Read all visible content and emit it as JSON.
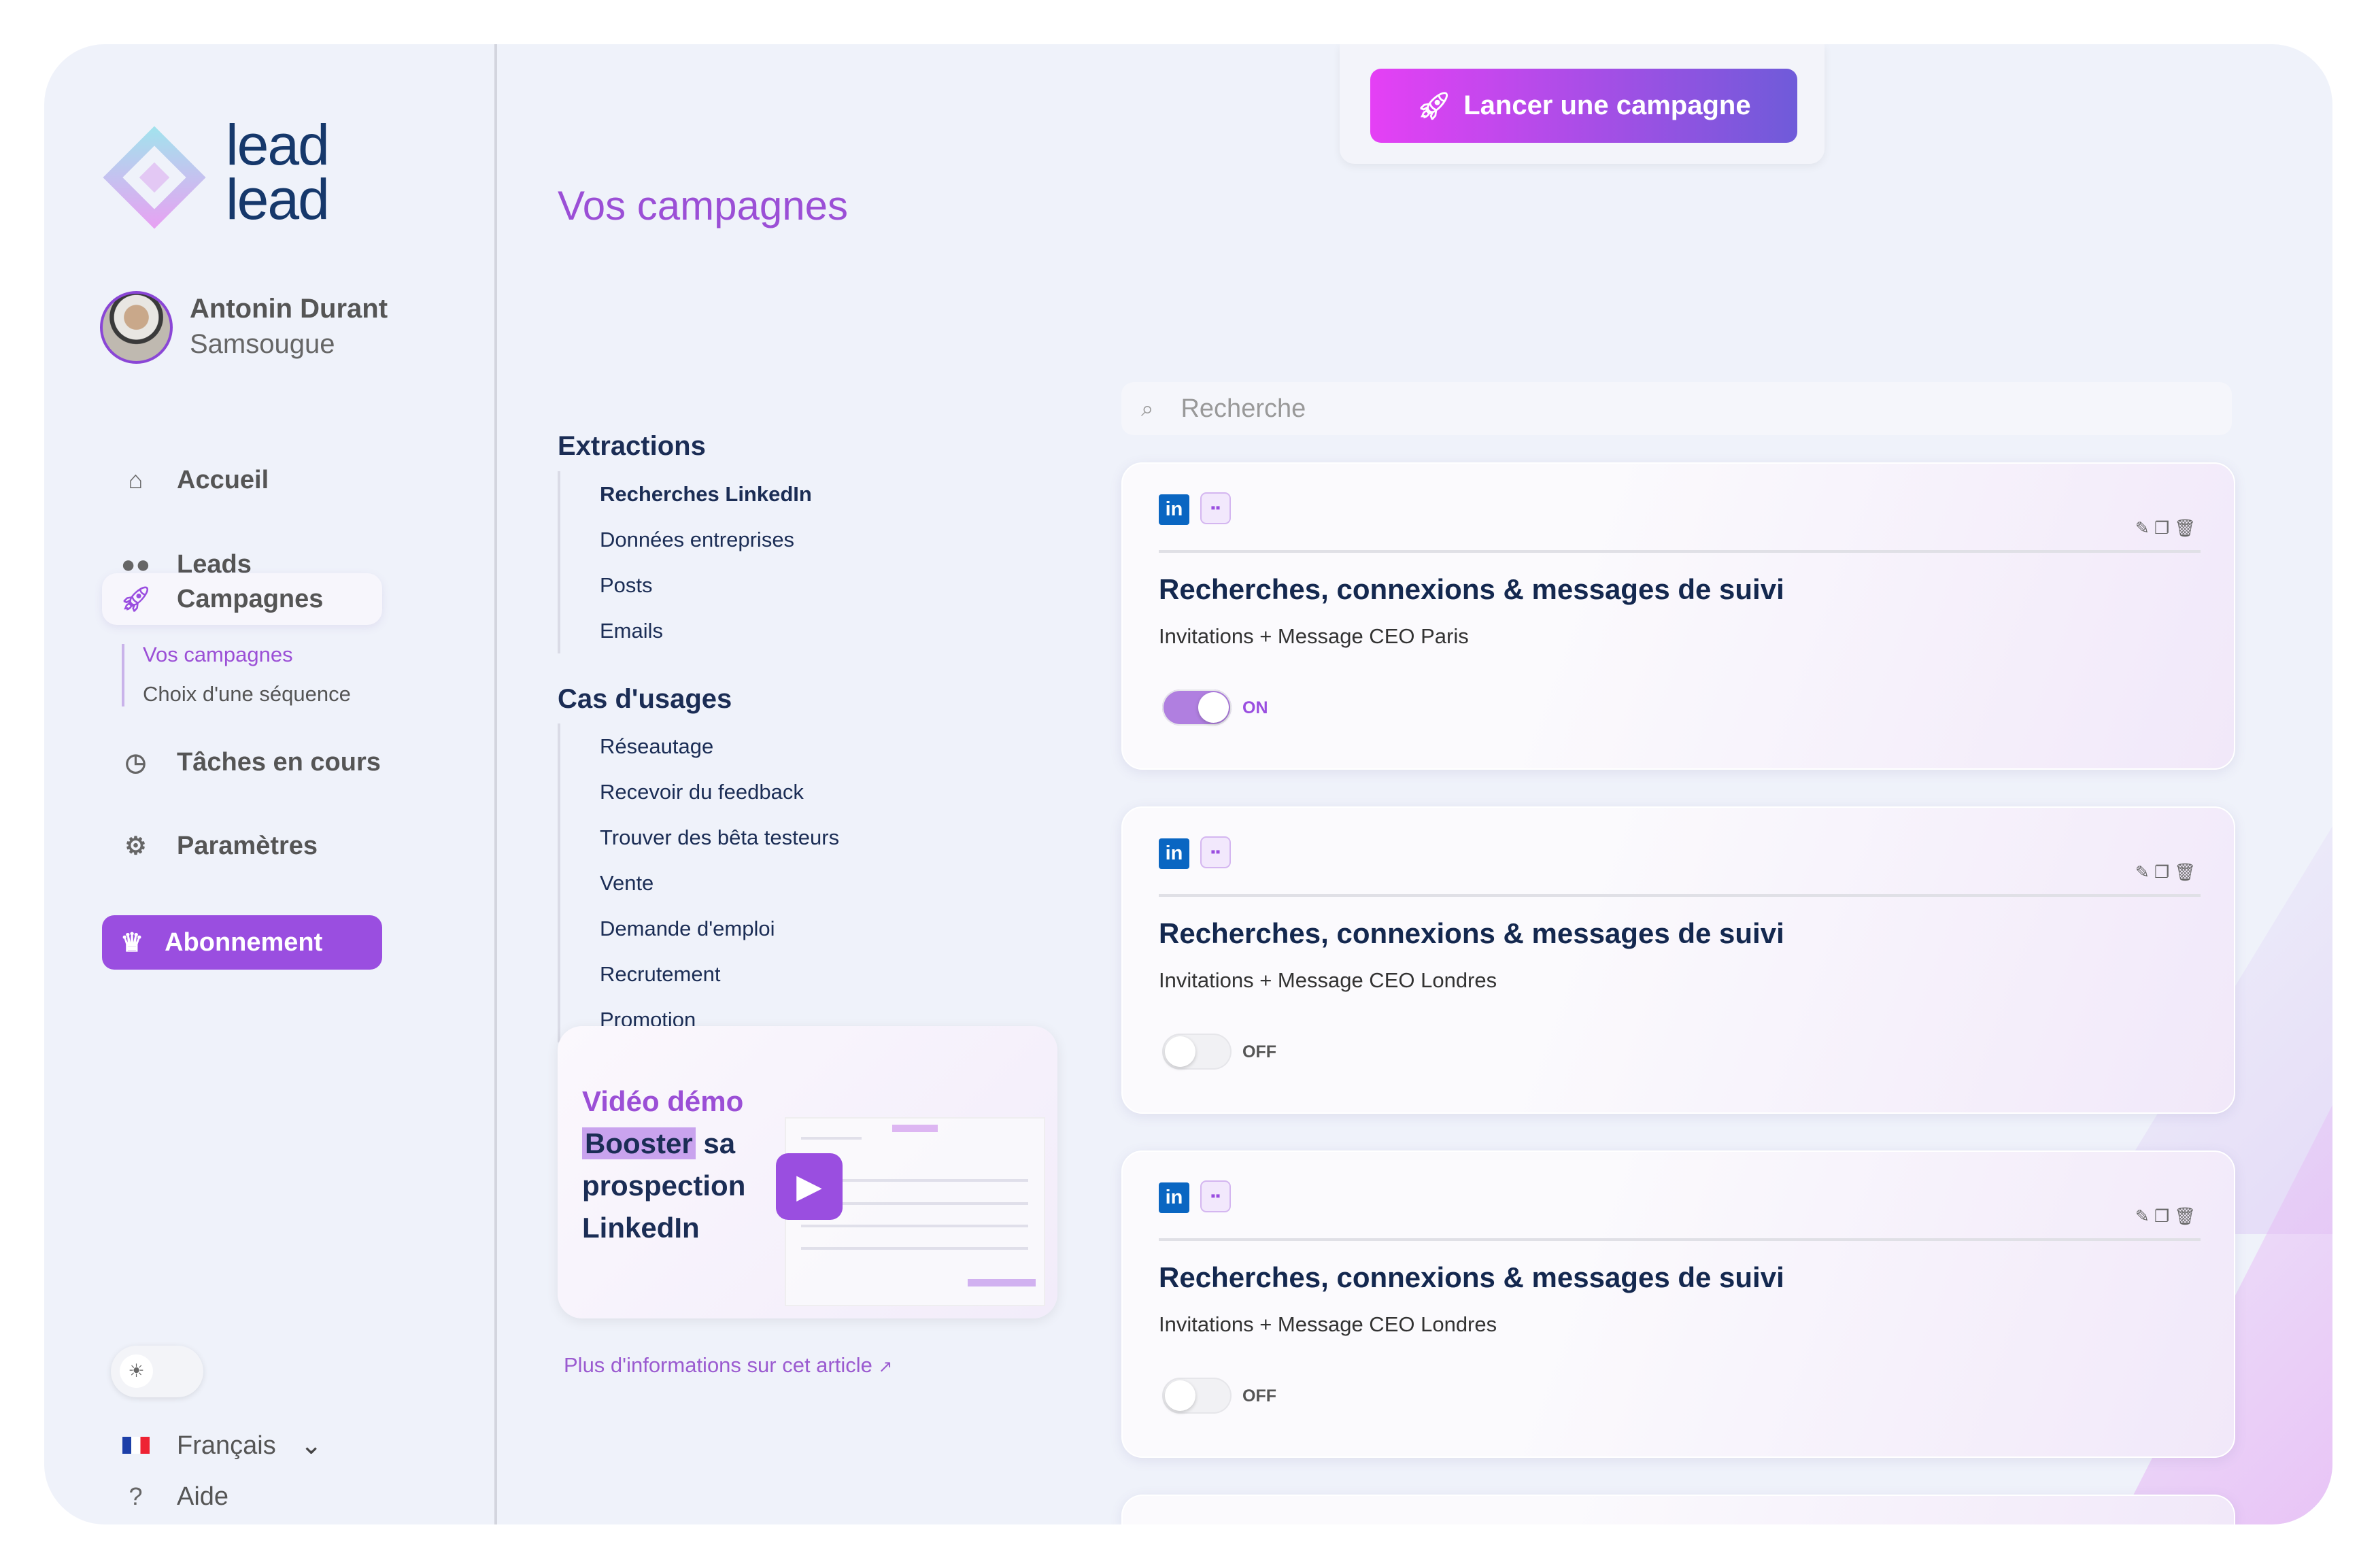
{
  "brand": {
    "logo_text_1": "lead",
    "logo_text_2": "lead"
  },
  "user": {
    "name": "Antonin Durant",
    "company": "Samsougue"
  },
  "sidebar": {
    "items": [
      {
        "label": "Accueil",
        "icon": "home-icon"
      },
      {
        "label": "Leads",
        "icon": "users-icon"
      },
      {
        "label": "Campagnes",
        "icon": "rocket-icon",
        "active": true
      },
      {
        "label": "Tâches en cours",
        "icon": "timer-icon"
      },
      {
        "label": "Paramètres",
        "icon": "gear-icon"
      }
    ],
    "sub_items": [
      {
        "label": "Vos campagnes",
        "active": true
      },
      {
        "label": "Choix d'une séquence"
      }
    ],
    "subscription": "Abonnement",
    "language": "Français",
    "help": "Aide"
  },
  "header": {
    "launch_button": "Lancer une campagne"
  },
  "page_title": "Vos campagnes",
  "extractions": {
    "heading": "Extractions",
    "items": [
      "Recherches LinkedIn",
      "Données entreprises",
      "Posts",
      "Emails"
    ]
  },
  "use_cases": {
    "heading": "Cas d'usages",
    "items": [
      "Réseautage",
      "Recevoir du feedback",
      "Trouver des bêta testeurs",
      "Vente",
      "Demande d'emploi",
      "Recrutement",
      "Promotion"
    ]
  },
  "video": {
    "line1": "Vidéo démo",
    "highlight": "Booster",
    "line2_rest": " sa",
    "line3": "prospection",
    "line4": "LinkedIn"
  },
  "more_link": "Plus d'informations sur cet article",
  "search": {
    "placeholder": "Recherche"
  },
  "campaigns": [
    {
      "title": "Recherches, connexions & messages de suivi",
      "subtitle": "Invitations + Message CEO Paris",
      "status": "ON",
      "active": true
    },
    {
      "title": "Recherches, connexions & messages de suivi",
      "subtitle": "Invitations + Message CEO Londres",
      "status": "OFF",
      "active": false
    },
    {
      "title": "Recherches, connexions & messages de suivi",
      "subtitle": "Invitations + Message CEO Londres",
      "status": "OFF",
      "active": false
    }
  ],
  "colors": {
    "accent": "#9a4ee0",
    "navy": "#14284f",
    "linkedin": "#0a66c2"
  }
}
